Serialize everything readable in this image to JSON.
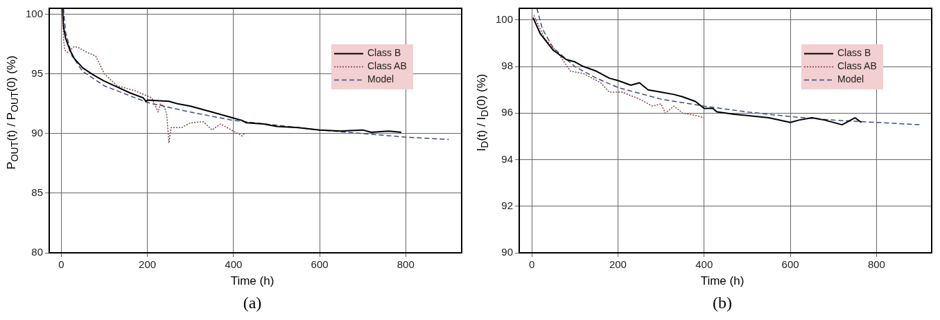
{
  "chart_data": [
    {
      "type": "line",
      "xlabel": "Time (h)",
      "ylabel": "P$_{OUT}$(t) / P$_{OUT}$(0) (%)",
      "xlim": [
        -28,
        930
      ],
      "xticks": [
        0,
        200,
        400,
        600,
        800
      ],
      "ylim": [
        80,
        100.5
      ],
      "yticks": [
        80,
        85,
        90,
        95,
        100
      ],
      "grid": true,
      "legend": "top right",
      "annotations": [
        "(a)"
      ],
      "series": [
        {
          "name": "Class B",
          "color": "#000000",
          "line_style": "solid",
          "x": [
            3,
            5,
            10,
            20,
            30,
            50,
            75,
            100,
            130,
            160,
            190,
            197,
            200,
            250,
            270,
            300,
            350,
            400,
            420,
            430,
            470,
            500,
            550,
            600,
            650,
            700,
            720,
            760,
            790
          ],
          "values": [
            100.5,
            99,
            98,
            97,
            96.3,
            95.5,
            94.9,
            94.4,
            93.9,
            93.4,
            93,
            92.7,
            92.8,
            92.7,
            92.5,
            92.3,
            91.8,
            91.3,
            91.1,
            90.9,
            90.8,
            90.6,
            90.5,
            90.3,
            90.2,
            90.3,
            90.1,
            90.2,
            90.1
          ]
        },
        {
          "name": "Class AB",
          "color": "#8a3a3a",
          "line_style": "dotted",
          "x": [
            3,
            5,
            8,
            15,
            30,
            40,
            60,
            80,
            100,
            130,
            150,
            170,
            190,
            210,
            225,
            230,
            240,
            245,
            250,
            255,
            280,
            300,
            330,
            350,
            370,
            400,
            420,
            425
          ],
          "values": [
            100,
            98,
            97,
            96.8,
            97.3,
            97.2,
            96.8,
            96.5,
            95,
            94,
            93.8,
            93.6,
            93.3,
            93,
            91.8,
            92.5,
            92.2,
            91.6,
            89.2,
            90.5,
            90.5,
            90.9,
            91,
            90.3,
            90.8,
            90.2,
            89.8,
            90
          ]
        },
        {
          "name": "Model",
          "color": "#3a4a8a",
          "line_style": "dashed",
          "x": [
            5,
            10,
            25,
            50,
            100,
            150,
            200,
            300,
            400,
            500,
            600,
            700,
            800,
            900
          ],
          "values": [
            100.5,
            98.5,
            96.5,
            95.2,
            94,
            93.3,
            92.6,
            91.8,
            91.1,
            90.7,
            90.3,
            90,
            89.7,
            89.5
          ]
        }
      ]
    },
    {
      "type": "line",
      "xlabel": "Time (h)",
      "ylabel": "I$_{D}$(t) / I$_{D}$(0) (%)",
      "xlim": [
        -29,
        928
      ],
      "xticks": [
        0,
        200,
        400,
        600,
        800
      ],
      "ylim": [
        90,
        100.5
      ],
      "yticks": [
        90,
        92,
        94,
        96,
        98,
        100
      ],
      "grid": true,
      "legend": "top right",
      "annotations": [
        "(b)"
      ],
      "series": [
        {
          "name": "Class B",
          "color": "#000000",
          "line_style": "solid",
          "x": [
            3,
            20,
            50,
            80,
            100,
            120,
            150,
            180,
            200,
            230,
            250,
            270,
            300,
            330,
            350,
            380,
            400,
            420,
            430,
            470,
            500,
            550,
            600,
            620,
            650,
            680,
            720,
            750,
            765
          ],
          "values": [
            100.1,
            99.4,
            98.7,
            98.3,
            98.2,
            98,
            97.8,
            97.5,
            97.4,
            97.2,
            97.3,
            97,
            96.9,
            96.8,
            96.7,
            96.5,
            96.2,
            96.2,
            96.05,
            95.95,
            95.9,
            95.8,
            95.6,
            95.7,
            95.8,
            95.7,
            95.5,
            95.8,
            95.6
          ]
        },
        {
          "name": "Class AB",
          "color": "#8a3a3a",
          "line_style": "dotted",
          "x": [
            5,
            30,
            60,
            90,
            120,
            160,
            180,
            210,
            250,
            280,
            300,
            310,
            330,
            350,
            380,
            400
          ],
          "values": [
            100.2,
            99.2,
            98.6,
            97.8,
            97.7,
            97.3,
            96.9,
            96.9,
            96.6,
            96.3,
            96.4,
            96,
            96.3,
            96,
            95.9,
            95.8
          ]
        },
        {
          "name": "Model",
          "color": "#3a4a8a",
          "line_style": "dashed",
          "x": [
            12,
            25,
            50,
            100,
            150,
            200,
            300,
            400,
            500,
            600,
            700,
            800,
            900
          ],
          "values": [
            100.5,
            99.6,
            98.8,
            98,
            97.5,
            97.1,
            96.6,
            96.3,
            96.05,
            95.85,
            95.7,
            95.6,
            95.5
          ]
        }
      ]
    }
  ]
}
